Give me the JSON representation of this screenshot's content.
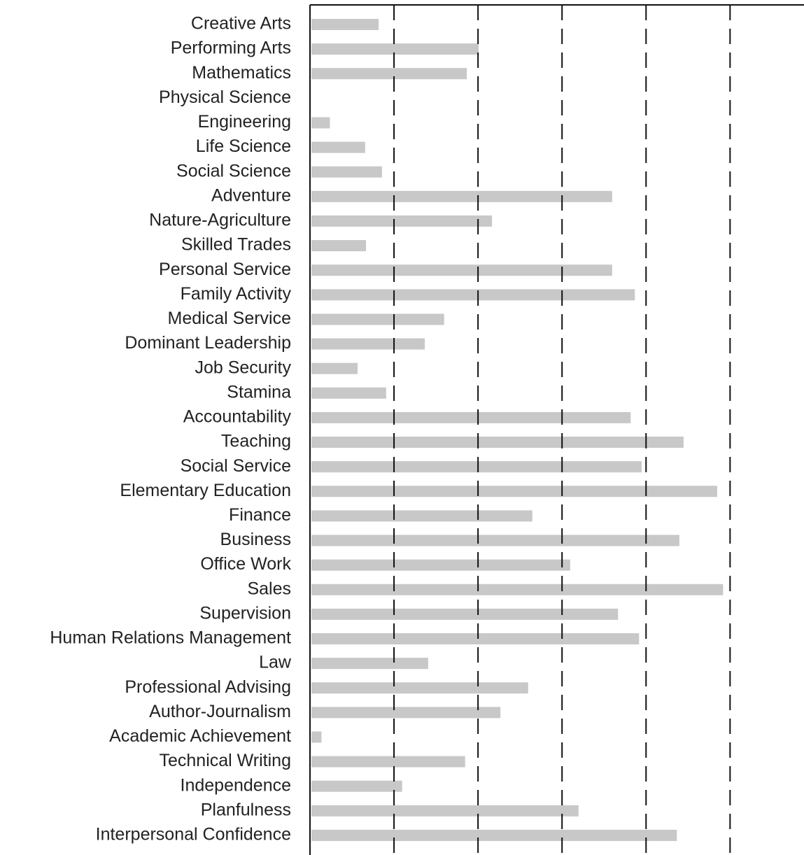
{
  "chart_data": {
    "type": "bar",
    "orientation": "horizontal",
    "categories": [
      "Creative Arts",
      "Performing Arts",
      "Mathematics",
      "Physical Science",
      "Engineering",
      "Life Science",
      "Social Science",
      "Adventure",
      "Nature-Agriculture",
      "Skilled Trades",
      "Personal Service",
      "Family Activity",
      "Medical Service",
      "Dominant Leadership",
      "Job Security",
      "Stamina",
      "Accountability",
      "Teaching",
      "Social Service",
      "Elementary Education",
      "Finance",
      "Business",
      "Office Work",
      "Sales",
      "Supervision",
      "Human Relations Management",
      "Law",
      "Professional Advising",
      "Author-Journalism",
      "Academic Achievement",
      "Technical Writing",
      "Independence",
      "Planfulness",
      "Interpersonal Confidence"
    ],
    "values": [
      8.0,
      19.9,
      18.5,
      0,
      2.2,
      6.4,
      8.4,
      35.8,
      21.5,
      6.5,
      35.8,
      38.5,
      15.8,
      13.5,
      5.5,
      8.9,
      38.0,
      44.3,
      39.3,
      48.3,
      26.3,
      43.8,
      30.8,
      49.0,
      36.5,
      39.0,
      13.9,
      25.8,
      22.5,
      1.2,
      18.3,
      10.8,
      31.8,
      43.5
    ],
    "color": "#c8c8c8",
    "xlim": [
      0,
      58.8
    ],
    "xticks": [
      10,
      20,
      30,
      40,
      50
    ],
    "grid": true
  }
}
